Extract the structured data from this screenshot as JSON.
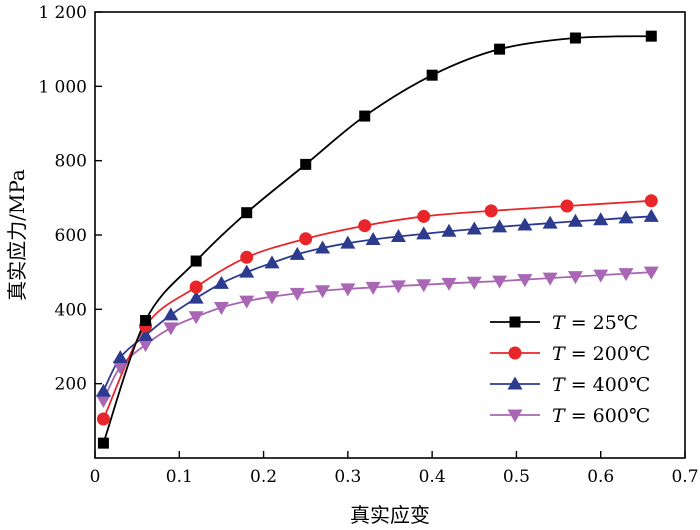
{
  "chart_data": {
    "type": "line",
    "xlabel": "真实应变",
    "ylabel": "真实应力/MPa",
    "xlim": [
      0,
      0.7
    ],
    "ylim": [
      0,
      1200
    ],
    "x_ticks": [
      0,
      0.1,
      0.2,
      0.3,
      0.4,
      0.5,
      0.6,
      0.7
    ],
    "x_tick_labels": [
      "0",
      "0.1",
      "0.2",
      "0.3",
      "0.4",
      "0.5",
      "0.6",
      "0.7"
    ],
    "y_ticks": [
      200,
      400,
      600,
      800,
      1000,
      1200
    ],
    "y_tick_labels": [
      "200",
      "400",
      "600",
      "800",
      "1 000",
      "1 200"
    ],
    "grid": false,
    "legend_position": "lower-right",
    "series": [
      {
        "name": "T = 25℃",
        "legend_prefix": "T",
        "legend_suffix": " = 25℃",
        "color": "#000000",
        "marker": "square",
        "x": [
          0.01,
          0.06,
          0.12,
          0.18,
          0.25,
          0.32,
          0.4,
          0.48,
          0.57,
          0.66
        ],
        "y": [
          40,
          370,
          530,
          660,
          790,
          920,
          1030,
          1100,
          1130,
          1135
        ]
      },
      {
        "name": "T = 200℃",
        "legend_prefix": "T",
        "legend_suffix": " = 200℃",
        "color": "#e8262a",
        "marker": "circle",
        "x": [
          0.01,
          0.06,
          0.12,
          0.18,
          0.25,
          0.32,
          0.39,
          0.47,
          0.56,
          0.66
        ],
        "y": [
          105,
          355,
          460,
          540,
          590,
          625,
          650,
          665,
          678,
          692
        ]
      },
      {
        "name": "T = 400℃",
        "legend_prefix": "T",
        "legend_suffix": " = 400℃",
        "color": "#2d3b8f",
        "marker": "triangle-up",
        "x": [
          0.01,
          0.03,
          0.06,
          0.09,
          0.12,
          0.15,
          0.18,
          0.21,
          0.24,
          0.27,
          0.3,
          0.33,
          0.36,
          0.39,
          0.42,
          0.45,
          0.48,
          0.51,
          0.54,
          0.57,
          0.6,
          0.63,
          0.66
        ],
        "y": [
          180,
          270,
          330,
          385,
          430,
          470,
          500,
          525,
          548,
          565,
          578,
          588,
          596,
          603,
          610,
          616,
          622,
          627,
          632,
          637,
          641,
          646,
          650
        ]
      },
      {
        "name": "T = 600℃",
        "legend_prefix": "T",
        "legend_suffix": " = 600℃",
        "color": "#a866b4",
        "marker": "triangle-down",
        "x": [
          0.01,
          0.03,
          0.06,
          0.09,
          0.12,
          0.15,
          0.18,
          0.21,
          0.24,
          0.27,
          0.3,
          0.33,
          0.36,
          0.39,
          0.42,
          0.45,
          0.48,
          0.51,
          0.54,
          0.57,
          0.6,
          0.63,
          0.66
        ],
        "y": [
          155,
          245,
          305,
          350,
          380,
          405,
          422,
          434,
          443,
          450,
          455,
          459,
          463,
          466,
          470,
          473,
          476,
          480,
          484,
          488,
          492,
          496,
          500
        ]
      }
    ]
  }
}
